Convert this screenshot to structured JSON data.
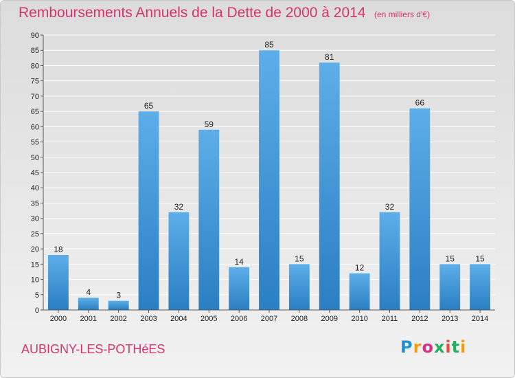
{
  "header": {
    "title": "Remboursements Annuels de la Dette de 2000 à 2014",
    "unit": "(en milliers d'€)"
  },
  "footer": {
    "commune": "AUBIGNY-LES-POTHéES",
    "logo_text": "Proxiti",
    "logo_colors": [
      "#1e90d6",
      "#f39c12",
      "#d63384",
      "#27ae60",
      "#e74c3c",
      "#27ae60",
      "#f39c12"
    ]
  },
  "colors": {
    "title": "#d6336c",
    "bar_top": "#5daee8",
    "bar_bottom": "#2a7fc2",
    "grid": "#ffffff"
  },
  "chart_data": {
    "type": "bar",
    "title": "Remboursements Annuels de la Dette de 2000 à 2014",
    "subtitle": "(en milliers d'€)",
    "xlabel": "",
    "ylabel": "",
    "ylim": [
      0,
      90
    ],
    "ytick_step": 5,
    "grid": true,
    "categories": [
      "2000",
      "2001",
      "2002",
      "2003",
      "2004",
      "2005",
      "2006",
      "2007",
      "2008",
      "2009",
      "2010",
      "2011",
      "2012",
      "2013",
      "2014"
    ],
    "values": [
      18,
      4,
      3,
      65,
      32,
      59,
      14,
      85,
      15,
      81,
      12,
      32,
      66,
      15,
      15
    ]
  }
}
